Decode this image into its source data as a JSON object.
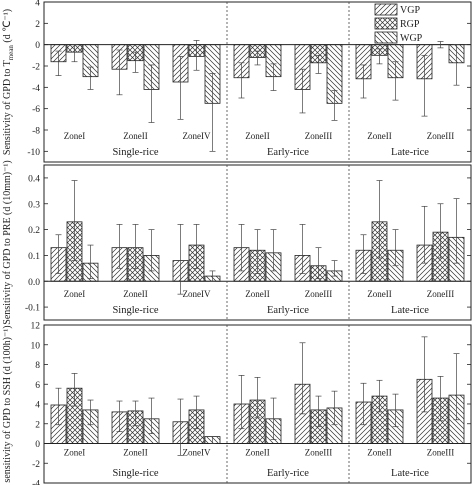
{
  "legend": {
    "items": [
      "VGP",
      "RGP",
      "WGP"
    ]
  },
  "chart_data": [
    {
      "type": "bar",
      "ylabel": "Sensitivity of GPD to T",
      "ylabel_sub": "mean",
      "ylabel_unit": " (d ℃⁻¹)",
      "ylim": [
        -11,
        4
      ],
      "yticks": [
        4,
        2,
        0,
        -2,
        -4,
        -6,
        -8,
        -10
      ],
      "category_label_position": "bottom",
      "categories": [
        "ZoneI",
        "ZoneII",
        "ZoneIV",
        "ZoneII",
        "ZoneIII",
        "ZoneII",
        "ZoneIII"
      ],
      "groups": [
        {
          "name": "Single-rice",
          "span": [
            0,
            2
          ]
        },
        {
          "name": "Early-rice",
          "span": [
            3,
            4
          ]
        },
        {
          "name": "Late-rice",
          "span": [
            5,
            6
          ]
        }
      ],
      "series": [
        {
          "name": "VGP",
          "values": [
            -1.6,
            -2.3,
            -3.5,
            -3.1,
            -4.2,
            -3.2,
            -3.2
          ],
          "err_low": [
            1.3,
            2.4,
            3.5,
            1.9,
            2.2,
            1.8,
            3.5
          ],
          "err_high": [
            1.0,
            1.8,
            2.4,
            1.4,
            1.9,
            1.3,
            2.2
          ]
        },
        {
          "name": "RGP",
          "values": [
            -0.7,
            -1.5,
            -1.1,
            -1.2,
            -1.7,
            -1.0,
            0.0
          ],
          "err_low": [
            0.9,
            1.1,
            1.3,
            0.7,
            1.0,
            0.8,
            0.3
          ],
          "err_high": [
            0.7,
            0.8,
            1.5,
            0.6,
            0.7,
            0.6,
            0.3
          ]
        },
        {
          "name": "WGP",
          "values": [
            -3.0,
            -4.2,
            -5.5,
            -3.0,
            -5.5,
            -3.1,
            -1.7
          ],
          "err_low": [
            1.2,
            3.1,
            4.5,
            1.3,
            1.6,
            2.1,
            2.1
          ],
          "err_high": [
            0.9,
            2.3,
            2.8,
            1.2,
            1.2,
            1.5,
            1.7
          ]
        }
      ]
    },
    {
      "type": "bar",
      "ylabel": "Sensitivity of GPD to PRE (d (10mm)⁻¹)",
      "ylabel_sub": "",
      "ylabel_unit": "",
      "ylim": [
        -0.15,
        0.45
      ],
      "yticks": [
        0.4,
        0.3,
        0.2,
        0.1,
        0.0,
        -0.1
      ],
      "category_label_position": "bottom",
      "categories": [
        "ZoneI",
        "ZoneII",
        "ZoneIV",
        "ZoneII",
        "ZoneIII",
        "ZoneII",
        "ZoneIII"
      ],
      "groups": [
        {
          "name": "Single-rice",
          "span": [
            0,
            2
          ]
        },
        {
          "name": "Early-rice",
          "span": [
            3,
            4
          ]
        },
        {
          "name": "Late-rice",
          "span": [
            5,
            6
          ]
        }
      ],
      "series": [
        {
          "name": "VGP",
          "values": [
            0.13,
            0.13,
            0.08,
            0.13,
            0.1,
            0.12,
            0.14
          ],
          "err_low": [
            0.1,
            0.08,
            0.13,
            0.09,
            0.07,
            0.09,
            0.07
          ],
          "err_high": [
            0.05,
            0.09,
            0.14,
            0.09,
            0.12,
            0.06,
            0.15
          ]
        },
        {
          "name": "RGP",
          "values": [
            0.23,
            0.13,
            0.14,
            0.12,
            0.06,
            0.23,
            0.19
          ],
          "err_low": [
            0.15,
            0.08,
            0.09,
            0.09,
            0.05,
            0.14,
            0.1
          ],
          "err_high": [
            0.16,
            0.09,
            0.08,
            0.08,
            0.07,
            0.16,
            0.11
          ]
        },
        {
          "name": "WGP",
          "values": [
            0.07,
            0.1,
            0.02,
            0.11,
            0.04,
            0.12,
            0.17
          ],
          "err_low": [
            0.06,
            0.06,
            0.02,
            0.07,
            0.02,
            0.06,
            0.1
          ],
          "err_high": [
            0.07,
            0.1,
            0.02,
            0.09,
            0.04,
            0.08,
            0.15
          ]
        }
      ]
    },
    {
      "type": "bar",
      "ylabel": "sensitivity of GPD to SSH (d (100h)⁻¹)",
      "ylabel_sub": "",
      "ylabel_unit": "",
      "ylim": [
        -4,
        12
      ],
      "yticks": [
        12,
        10,
        8,
        6,
        4,
        2,
        0,
        -2,
        -4
      ],
      "category_label_position": "zero",
      "categories": [
        "ZoneI",
        "ZoneII",
        "ZoneIV",
        "ZoneII",
        "ZoneIII",
        "ZoneII",
        "ZoneIII"
      ],
      "groups": [
        {
          "name": "Single-rice",
          "span": [
            0,
            2
          ]
        },
        {
          "name": "Early-rice",
          "span": [
            3,
            4
          ]
        },
        {
          "name": "Late-rice",
          "span": [
            5,
            6
          ]
        }
      ],
      "series": [
        {
          "name": "VGP",
          "values": [
            3.9,
            3.2,
            2.2,
            4.0,
            6.0,
            4.2,
            6.5
          ],
          "err_low": [
            2.0,
            2.0,
            3.4,
            2.5,
            3.0,
            2.3,
            3.3
          ],
          "err_high": [
            1.7,
            1.1,
            2.3,
            2.9,
            4.2,
            1.9,
            4.3
          ]
        },
        {
          "name": "RGP",
          "values": [
            5.6,
            3.3,
            3.4,
            4.4,
            3.4,
            4.8,
            4.6
          ],
          "err_low": [
            1.8,
            1.5,
            1.9,
            1.8,
            1.7,
            1.6,
            2.3
          ],
          "err_high": [
            1.5,
            1.0,
            1.4,
            2.3,
            1.4,
            1.6,
            2.2
          ]
        },
        {
          "name": "WGP",
          "values": [
            3.4,
            2.5,
            0.7,
            2.5,
            3.6,
            3.4,
            4.9
          ],
          "err_low": [
            1.5,
            1.5,
            0.7,
            2.1,
            1.7,
            1.7,
            2.5
          ],
          "err_high": [
            1.0,
            2.1,
            0.0,
            2.1,
            1.7,
            1.6,
            4.2
          ]
        }
      ]
    }
  ]
}
